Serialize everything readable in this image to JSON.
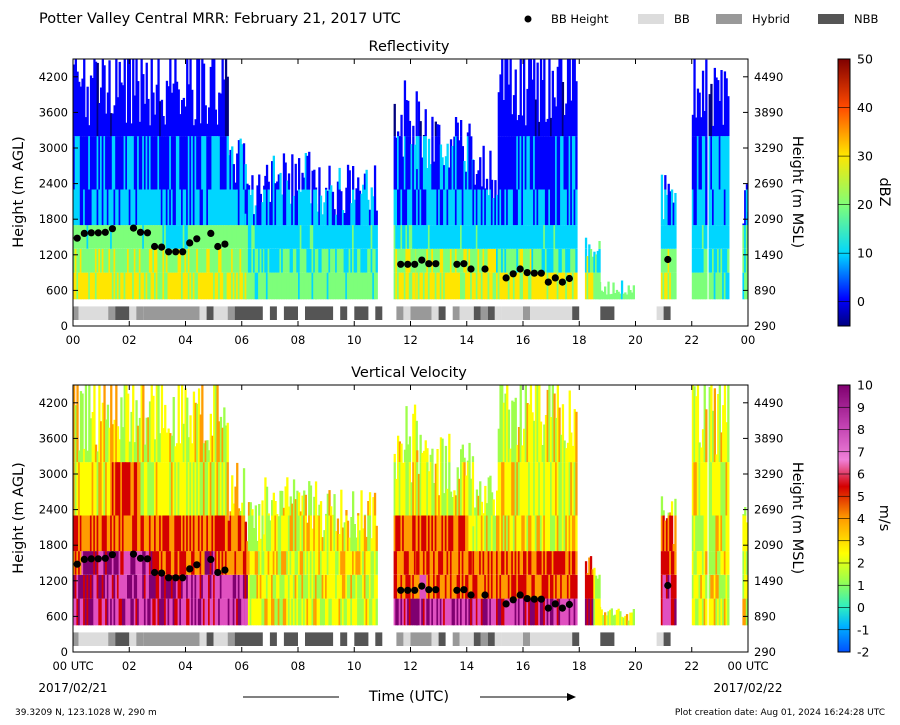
{
  "header": {
    "title": "Potter Valley Central MRR:  February 21, 2017 UTC",
    "legend": [
      {
        "label": "BB Height",
        "kind": "marker",
        "color": "#000000"
      },
      {
        "label": "BB",
        "kind": "patch",
        "color": "#dcdcdc"
      },
      {
        "label": "Hybrid",
        "kind": "patch",
        "color": "#999999"
      },
      {
        "label": "NBB",
        "kind": "patch",
        "color": "#555555"
      }
    ]
  },
  "footer": {
    "location": "39.3209 N, 123.1028 W, 290 m",
    "creation": "Plot creation date: Aug 01, 2024 16:24:28 UTC",
    "xlabel": "Time (UTC)",
    "start_date": "2017/02/21",
    "end_date": "2017/02/22"
  },
  "chart_data": [
    {
      "type": "heatmap",
      "title": "Reflectivity",
      "ylabel": "Height (m AGL)",
      "ylabel_right": "Height (m MSL)",
      "xlim": [
        0,
        24
      ],
      "ylim": [
        0,
        4500
      ],
      "x_ticks": [
        "00",
        "02",
        "04",
        "06",
        "08",
        "10",
        "12",
        "14",
        "16",
        "18",
        "20",
        "22",
        "00"
      ],
      "y_ticks": [
        "0",
        "600",
        "1200",
        "1800",
        "2400",
        "3000",
        "3600",
        "4200"
      ],
      "y_ticks_right": [
        "290",
        "890",
        "1490",
        "2090",
        "2690",
        "3290",
        "3890",
        "4490"
      ],
      "colorbar": {
        "label": "dBZ",
        "min": -5,
        "max": 50,
        "ticks": [
          "0",
          "10",
          "20",
          "30",
          "40",
          "50"
        ]
      },
      "bb_height": [
        {
          "x": 0.15,
          "y": 1480
        },
        {
          "x": 0.4,
          "y": 1560
        },
        {
          "x": 0.65,
          "y": 1570
        },
        {
          "x": 0.9,
          "y": 1570
        },
        {
          "x": 1.15,
          "y": 1580
        },
        {
          "x": 1.4,
          "y": 1640
        },
        {
          "x": 2.15,
          "y": 1650
        },
        {
          "x": 2.4,
          "y": 1580
        },
        {
          "x": 2.65,
          "y": 1570
        },
        {
          "x": 2.9,
          "y": 1340
        },
        {
          "x": 3.15,
          "y": 1330
        },
        {
          "x": 3.4,
          "y": 1250
        },
        {
          "x": 3.65,
          "y": 1250
        },
        {
          "x": 3.9,
          "y": 1250
        },
        {
          "x": 4.15,
          "y": 1400
        },
        {
          "x": 4.4,
          "y": 1470
        },
        {
          "x": 4.9,
          "y": 1560
        },
        {
          "x": 5.15,
          "y": 1340
        },
        {
          "x": 5.4,
          "y": 1380
        },
        {
          "x": 11.65,
          "y": 1040
        },
        {
          "x": 11.9,
          "y": 1040
        },
        {
          "x": 12.15,
          "y": 1040
        },
        {
          "x": 12.4,
          "y": 1110
        },
        {
          "x": 12.65,
          "y": 1050
        },
        {
          "x": 12.9,
          "y": 1050
        },
        {
          "x": 13.65,
          "y": 1040
        },
        {
          "x": 13.9,
          "y": 1050
        },
        {
          "x": 14.15,
          "y": 960
        },
        {
          "x": 14.65,
          "y": 960
        },
        {
          "x": 15.4,
          "y": 810
        },
        {
          "x": 15.65,
          "y": 880
        },
        {
          "x": 15.9,
          "y": 960
        },
        {
          "x": 16.15,
          "y": 900
        },
        {
          "x": 16.4,
          "y": 890
        },
        {
          "x": 16.65,
          "y": 890
        },
        {
          "x": 16.9,
          "y": 740
        },
        {
          "x": 17.15,
          "y": 810
        },
        {
          "x": 17.4,
          "y": 740
        },
        {
          "x": 17.65,
          "y": 800
        },
        {
          "x": 21.15,
          "y": 1120
        }
      ],
      "bb_type": [
        {
          "start": 0.0,
          "end": 0.2,
          "type": "Hybrid"
        },
        {
          "start": 0.2,
          "end": 1.25,
          "type": "BB"
        },
        {
          "start": 1.25,
          "end": 1.5,
          "type": "Hybrid"
        },
        {
          "start": 1.5,
          "end": 2.0,
          "type": "NBB"
        },
        {
          "start": 2.0,
          "end": 2.25,
          "type": "BB"
        },
        {
          "start": 2.25,
          "end": 2.5,
          "type": "Hybrid"
        },
        {
          "start": 2.5,
          "end": 4.5,
          "type": "Hybrid"
        },
        {
          "start": 4.5,
          "end": 4.75,
          "type": "BB"
        },
        {
          "start": 4.75,
          "end": 5.0,
          "type": "NBB"
        },
        {
          "start": 5.0,
          "end": 5.5,
          "type": "BB"
        },
        {
          "start": 5.5,
          "end": 5.75,
          "type": "Hybrid"
        },
        {
          "start": 5.75,
          "end": 6.75,
          "type": "NBB"
        },
        {
          "start": 7.0,
          "end": 7.25,
          "type": "NBB"
        },
        {
          "start": 7.5,
          "end": 8.0,
          "type": "NBB"
        },
        {
          "start": 8.25,
          "end": 9.25,
          "type": "NBB"
        },
        {
          "start": 9.5,
          "end": 9.75,
          "type": "NBB"
        },
        {
          "start": 10.0,
          "end": 10.5,
          "type": "NBB"
        },
        {
          "start": 10.75,
          "end": 11.0,
          "type": "NBB"
        },
        {
          "start": 11.5,
          "end": 11.75,
          "type": "Hybrid"
        },
        {
          "start": 11.75,
          "end": 12.0,
          "type": "BB"
        },
        {
          "start": 12.0,
          "end": 12.75,
          "type": "Hybrid"
        },
        {
          "start": 12.75,
          "end": 13.0,
          "type": "BB"
        },
        {
          "start": 13.0,
          "end": 13.25,
          "type": "NBB"
        },
        {
          "start": 13.5,
          "end": 13.75,
          "type": "Hybrid"
        },
        {
          "start": 13.75,
          "end": 14.25,
          "type": "BB"
        },
        {
          "start": 14.25,
          "end": 14.5,
          "type": "NBB"
        },
        {
          "start": 14.5,
          "end": 14.75,
          "type": "Hybrid"
        },
        {
          "start": 14.75,
          "end": 15.0,
          "type": "NBB"
        },
        {
          "start": 15.0,
          "end": 15.25,
          "type": "BB"
        },
        {
          "start": 15.25,
          "end": 16.0,
          "type": "BB"
        },
        {
          "start": 16.0,
          "end": 16.25,
          "type": "Hybrid"
        },
        {
          "start": 16.25,
          "end": 17.75,
          "type": "BB"
        },
        {
          "start": 17.75,
          "end": 18.0,
          "type": "NBB"
        },
        {
          "start": 18.75,
          "end": 19.25,
          "type": "NBB"
        },
        {
          "start": 20.75,
          "end": 21.0,
          "type": "BB"
        },
        {
          "start": 21.0,
          "end": 21.25,
          "type": "NBB"
        }
      ]
    },
    {
      "type": "heatmap",
      "title": "Vertical Velocity",
      "ylabel": "Height (m AGL)",
      "ylabel_right": "Height (m MSL)",
      "xlim": [
        0,
        24
      ],
      "ylim": [
        0,
        4500
      ],
      "x_ticks": [
        "00 UTC",
        "02",
        "04",
        "06",
        "08",
        "10",
        "12",
        "14",
        "16",
        "18",
        "20",
        "22",
        "00 UTC"
      ],
      "y_ticks": [
        "0",
        "600",
        "1200",
        "1800",
        "2400",
        "3000",
        "3600",
        "4200"
      ],
      "y_ticks_right": [
        "290",
        "890",
        "1490",
        "2090",
        "2690",
        "3290",
        "3890",
        "4490"
      ],
      "colorbar": {
        "label": "m/s",
        "min": -2,
        "max": 10,
        "ticks": [
          "-2",
          "-1",
          "0",
          "1",
          "2",
          "3",
          "4",
          "5",
          "6",
          "7",
          "8",
          "9",
          "10"
        ]
      }
    }
  ]
}
